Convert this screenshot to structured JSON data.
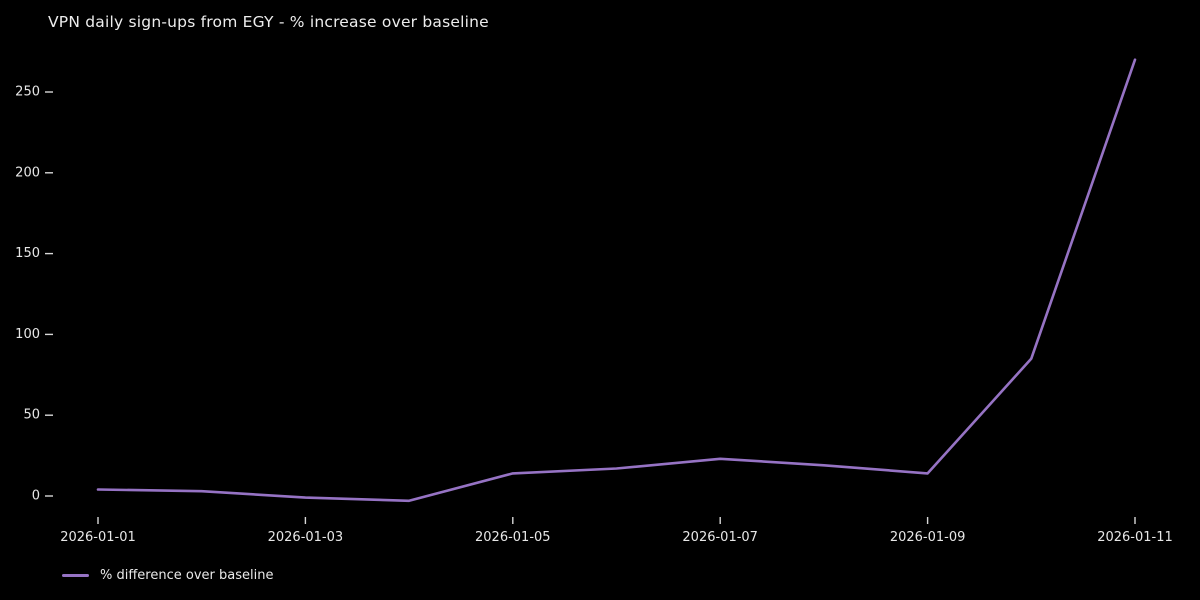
{
  "title": "VPN daily sign-ups from EGY - % increase over baseline",
  "legend": {
    "label": "% difference over baseline"
  },
  "colors": {
    "background": "#000000",
    "text": "#e9e9e9",
    "tick": "#d8d8d8",
    "line": "#9673c4"
  },
  "chart_data": {
    "type": "line",
    "title": "VPN daily sign-ups from EGY - % increase over baseline",
    "xlabel": "",
    "ylabel": "",
    "x": [
      "2026-01-01",
      "2026-01-02",
      "2026-01-03",
      "2026-01-04",
      "2026-01-05",
      "2026-01-06",
      "2026-01-07",
      "2026-01-08",
      "2026-01-09",
      "2026-01-10",
      "2026-01-11"
    ],
    "series": [
      {
        "name": "% difference over baseline",
        "values": [
          4,
          3,
          -1,
          -3,
          14,
          17,
          23,
          19,
          14,
          85,
          270
        ]
      }
    ],
    "yticks": [
      0,
      50,
      100,
      150,
      200,
      250
    ],
    "xtick_indices": [
      0,
      2,
      4,
      6,
      8,
      10
    ],
    "ylim": [
      -20,
      278
    ],
    "grid": false,
    "legend_position": "lower-left-outside"
  }
}
